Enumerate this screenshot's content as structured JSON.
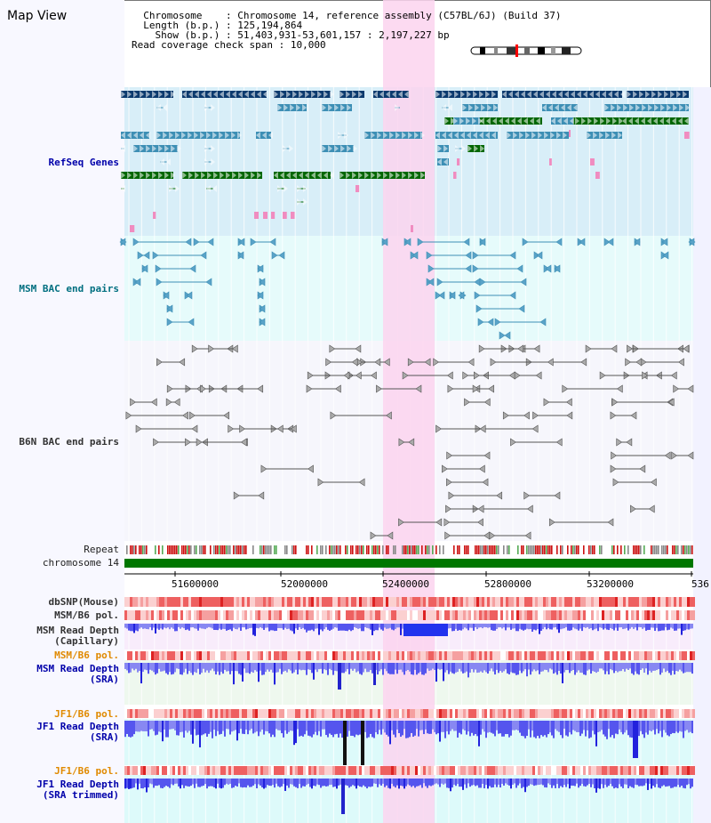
{
  "view_title": "Map View",
  "header": {
    "chromosome_key": "Chromosome",
    "chromosome_val": "Chromosome 14, reference assembly (C57BL/6J) (Build 37)",
    "length_key": "Length (b.p.)",
    "length_val": "125,194,864",
    "show_key": "Show (b.p.)",
    "show_val": "51,403,931-53,601,157 : 2,197,227 bp",
    "coverage_key": "Read coverage check span",
    "coverage_val": "10,000"
  },
  "tracks": {
    "refseq": "RefSeq Genes",
    "msm_bac": "MSM BAC end pairs",
    "b6n_bac": "B6N BAC end pairs",
    "repeat": "Repeat",
    "chromosome": "chromosome 14",
    "dbsnp": "dbSNP(Mouse)",
    "msm_b6_pol": "MSM/B6 pol.",
    "msm_read_cap_1": "MSM Read Depth",
    "msm_read_cap_2": "(Capillary)",
    "msm_b6_pol_2": "MSM/B6 pol.",
    "msm_read_sra_1": "MSM Read Depth",
    "msm_read_sra_2": "(SRA)",
    "jf1_b6_pol": "JF1/B6 pol.",
    "jf1_read_sra_1": "JF1 Read Depth",
    "jf1_read_sra_2": "(SRA)",
    "jf1_b6_pol_2": "JF1/B6 pol.",
    "jf1_read_trim_1": "JF1 Read Depth",
    "jf1_read_trim_2": "(SRA trimmed)"
  },
  "axis_ticks": [
    "51600000",
    "52000000",
    "52400000",
    "52800000",
    "53200000",
    "536"
  ],
  "colors": {
    "highlight": "#fbd3ef",
    "refseq_bg": "#d8eef8",
    "gene_navy": "#0b3a6e",
    "gene_blue": "#3d8fb5",
    "gene_green": "#006600",
    "depth_blue": "#3333ee",
    "chromosome_green": "#007700"
  }
}
